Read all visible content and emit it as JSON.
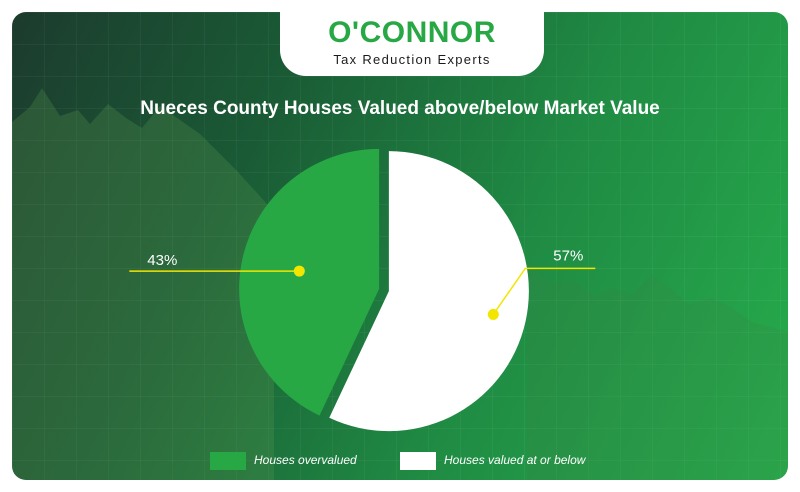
{
  "brand": {
    "name": "O'CONNOR",
    "tagline": "Tax Reduction Experts"
  },
  "colors": {
    "overvalued": "#27a844",
    "below": "#ffffff",
    "leader": "#f2e600"
  },
  "chart_data": {
    "type": "pie",
    "title": "Nueces County Houses Valued above/below Market Value",
    "slices": [
      {
        "name": "Houses overvalued",
        "value": 43,
        "label": "43%"
      },
      {
        "name": "Houses valued at or below",
        "value": 57,
        "label": "57%"
      }
    ],
    "legend_position": "bottom"
  }
}
